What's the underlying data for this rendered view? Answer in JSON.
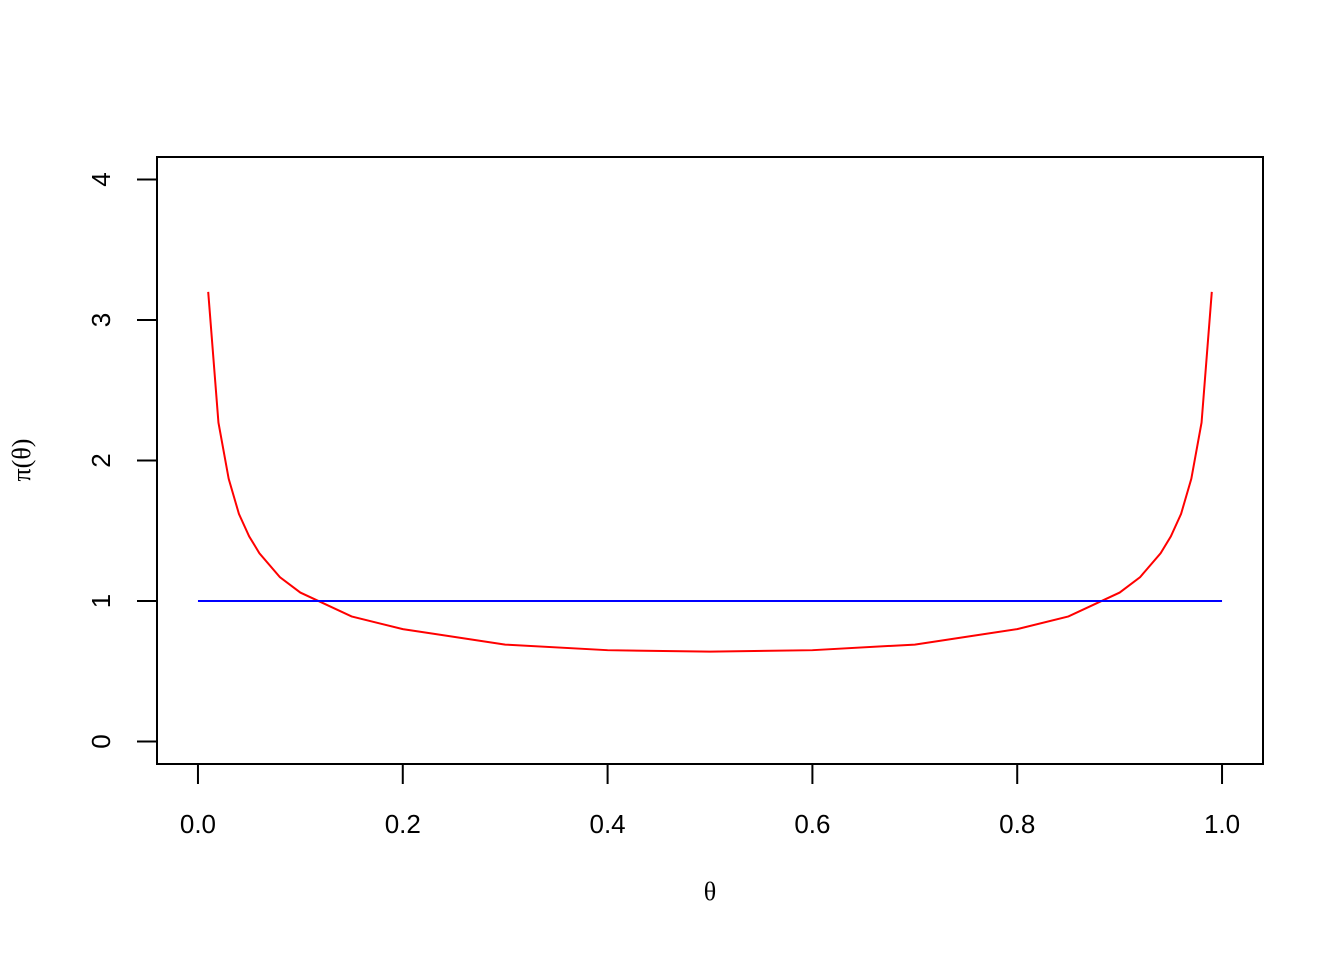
{
  "chart_data": {
    "type": "line",
    "xlabel": "θ",
    "ylabel": "π(θ)",
    "xlim": [
      -0.04,
      1.04
    ],
    "ylim": [
      -0.16,
      4.16
    ],
    "xticks": [
      {
        "value": 0,
        "label": "0.0"
      },
      0.2,
      0.4,
      0.6,
      0.8,
      {
        "value": 1,
        "label": "1.0"
      }
    ],
    "yticks": [
      0,
      1,
      2,
      3,
      4
    ],
    "series": [
      {
        "color": "#ff0000",
        "x": [
          0.01,
          0.02,
          0.03,
          0.04,
          0.05,
          0.06,
          0.08,
          0.1,
          0.15,
          0.2,
          0.3,
          0.4,
          0.5,
          0.6,
          0.7,
          0.8,
          0.85,
          0.9,
          0.92,
          0.94,
          0.95,
          0.96,
          0.97,
          0.98,
          0.99
        ],
        "values": [
          3.2,
          2.27,
          1.87,
          1.62,
          1.46,
          1.34,
          1.17,
          1.06,
          0.89,
          0.8,
          0.69,
          0.65,
          0.64,
          0.65,
          0.69,
          0.8,
          0.89,
          1.06,
          1.17,
          1.34,
          1.46,
          1.62,
          1.87,
          2.27,
          3.2
        ]
      },
      {
        "color": "#0000ff",
        "x": [
          0,
          1
        ],
        "values": [
          1,
          1
        ]
      }
    ]
  }
}
